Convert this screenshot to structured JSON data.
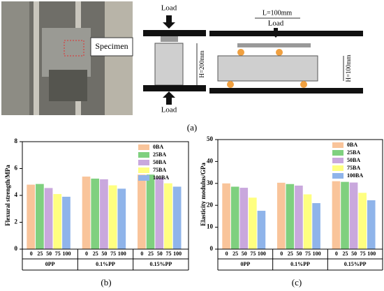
{
  "figure": {
    "specimen": "Specimen",
    "loads": [
      "Load",
      "Load",
      "Load"
    ],
    "h200": "H=200mm",
    "l100": "L=100mm",
    "h100": "H=100mm",
    "panel_a": "(a)",
    "panel_b": "(b)",
    "panel_c": "(c)"
  },
  "chart_data": [
    {
      "type": "bar",
      "ylabel": "Flexural strength/MPa",
      "categories": [
        "0PP",
        "0.1%PP",
        "0.15%PP"
      ],
      "bar_labels": [
        "0",
        "25",
        "50",
        "75",
        "100"
      ],
      "ylim": [
        0,
        8
      ],
      "yticks": [
        0,
        2,
        4,
        6,
        8
      ],
      "legend": "upper right",
      "series": [
        {
          "name": "0BA",
          "color": "#f9c49a",
          "values": [
            4.8,
            5.4,
            5.55
          ]
        },
        {
          "name": "25BA",
          "color": "#7fd07f",
          "values": [
            4.85,
            5.25,
            5.55
          ]
        },
        {
          "name": "50BA",
          "color": "#c9a8dd",
          "values": [
            4.55,
            5.2,
            5.3
          ]
        },
        {
          "name": "75BA",
          "color": "#ffff80",
          "values": [
            4.1,
            4.75,
            4.9
          ]
        },
        {
          "name": "100BA",
          "color": "#8fb4ea",
          "values": [
            3.9,
            4.5,
            4.65
          ]
        }
      ]
    },
    {
      "type": "bar",
      "ylabel": "Elasticity modulus/GPa",
      "categories": [
        "0PP",
        "0.1%PP",
        "0.15%PP"
      ],
      "bar_labels": [
        "0",
        "25",
        "50",
        "75",
        "100"
      ],
      "ylim": [
        0,
        50
      ],
      "yticks": [
        0,
        10,
        20,
        30,
        40,
        50
      ],
      "legend": "upper right",
      "series": [
        {
          "name": "0BA",
          "color": "#f9c49a",
          "values": [
            30,
            30.3,
            31
          ]
        },
        {
          "name": "25BA",
          "color": "#7fd07f",
          "values": [
            28.5,
            29.7,
            30.7
          ]
        },
        {
          "name": "50BA",
          "color": "#c9a8dd",
          "values": [
            28,
            29,
            30.4
          ]
        },
        {
          "name": "75BA",
          "color": "#ffff80",
          "values": [
            23.5,
            25,
            25.7
          ]
        },
        {
          "name": "100BA",
          "color": "#8fb4ea",
          "values": [
            17.5,
            21,
            22.3
          ]
        }
      ]
    }
  ]
}
